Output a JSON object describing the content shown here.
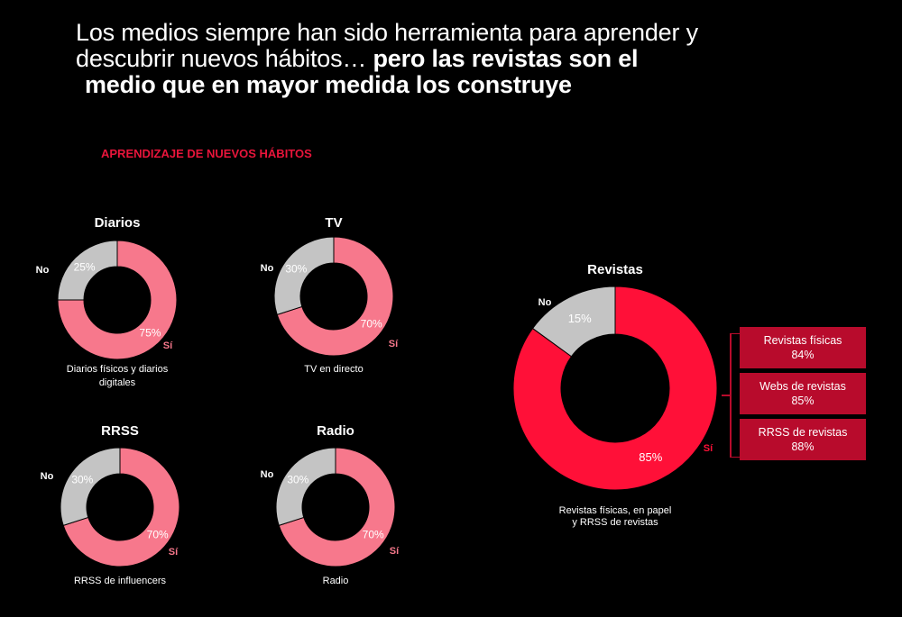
{
  "headline": {
    "line1": "Los medios siempre han sido herramienta para aprender y",
    "line2_regular": "descubrir nuevos hábitos… ",
    "line2_bold": "pero las revistas son el",
    "line3_bold": "medio que en mayor medida los construye"
  },
  "section_title": "APRENDIZAJE DE NUEVOS HÁBITOS",
  "colors": {
    "si_small": "#f7788c",
    "no": "#c4c4c4",
    "si_large": "#ff1038",
    "section": "#e8153b",
    "box": "#b80b2c"
  },
  "labels": {
    "si": "Sí",
    "no": "No"
  },
  "chart_data": [
    {
      "type": "pie",
      "title": "Diarios",
      "caption": [
        "Diarios físicos y diarios",
        "digitales"
      ],
      "categories": [
        "Sí",
        "No"
      ],
      "values": [
        75,
        25
      ],
      "value_labels": [
        "75%",
        "25%"
      ]
    },
    {
      "type": "pie",
      "title": "TV",
      "caption": [
        "TV en directo"
      ],
      "categories": [
        "Sí",
        "No"
      ],
      "values": [
        70,
        30
      ],
      "value_labels": [
        "70%",
        "30%"
      ]
    },
    {
      "type": "pie",
      "title": "RRSS",
      "caption": [
        "RRSS de influencers"
      ],
      "categories": [
        "Sí",
        "No"
      ],
      "values": [
        70,
        30
      ],
      "value_labels": [
        "70%",
        "30%"
      ]
    },
    {
      "type": "pie",
      "title": "Radio",
      "caption": [
        "Radio"
      ],
      "categories": [
        "Sí",
        "No"
      ],
      "values": [
        70,
        30
      ],
      "value_labels": [
        "70%",
        "30%"
      ]
    },
    {
      "type": "pie",
      "title": "Revistas",
      "caption": [
        "Revistas físicas, en papel",
        "y RRSS de revistas"
      ],
      "categories": [
        "Sí",
        "No"
      ],
      "values": [
        85,
        15
      ],
      "value_labels": [
        "85%",
        "15%"
      ]
    }
  ],
  "breakdown": [
    {
      "label": "Revistas físicas",
      "value": "84%"
    },
    {
      "label": "Webs de revistas",
      "value": "85%"
    },
    {
      "label": "RRSS de revistas",
      "value": "88%"
    }
  ]
}
